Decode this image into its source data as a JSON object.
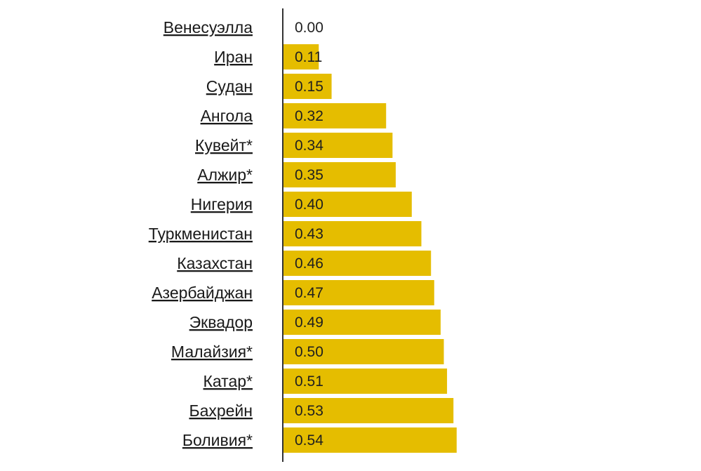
{
  "chart_data": {
    "type": "bar",
    "orientation": "horizontal",
    "categories": [
      "Венесуэлла ",
      "Иран ",
      "Судан ",
      "Ангола ",
      "Кувейт*",
      "Алжир*",
      "Нигерия ",
      "Туркменистан ",
      "Казахстан ",
      "Азербайджан ",
      "Эквадор ",
      "Малайзия*",
      "Катар*",
      "Бахрейн ",
      "Боливия*"
    ],
    "values": [
      0.0,
      0.11,
      0.15,
      0.32,
      0.34,
      0.35,
      0.4,
      0.43,
      0.46,
      0.47,
      0.49,
      0.5,
      0.51,
      0.53,
      0.54
    ],
    "value_labels": [
      "0.00",
      "0.11",
      "0.15",
      "0.32",
      "0.34",
      "0.35",
      "0.40",
      "0.43",
      "0.46",
      "0.47",
      "0.49",
      "0.50",
      "0.51",
      "0.53",
      "0.54"
    ],
    "bar_color": "#E5BD00",
    "axis_color": "#333333",
    "title": "",
    "xlabel": "",
    "ylabel": "",
    "xlim": [
      0,
      0.54
    ],
    "grid": false,
    "legend": "none"
  }
}
